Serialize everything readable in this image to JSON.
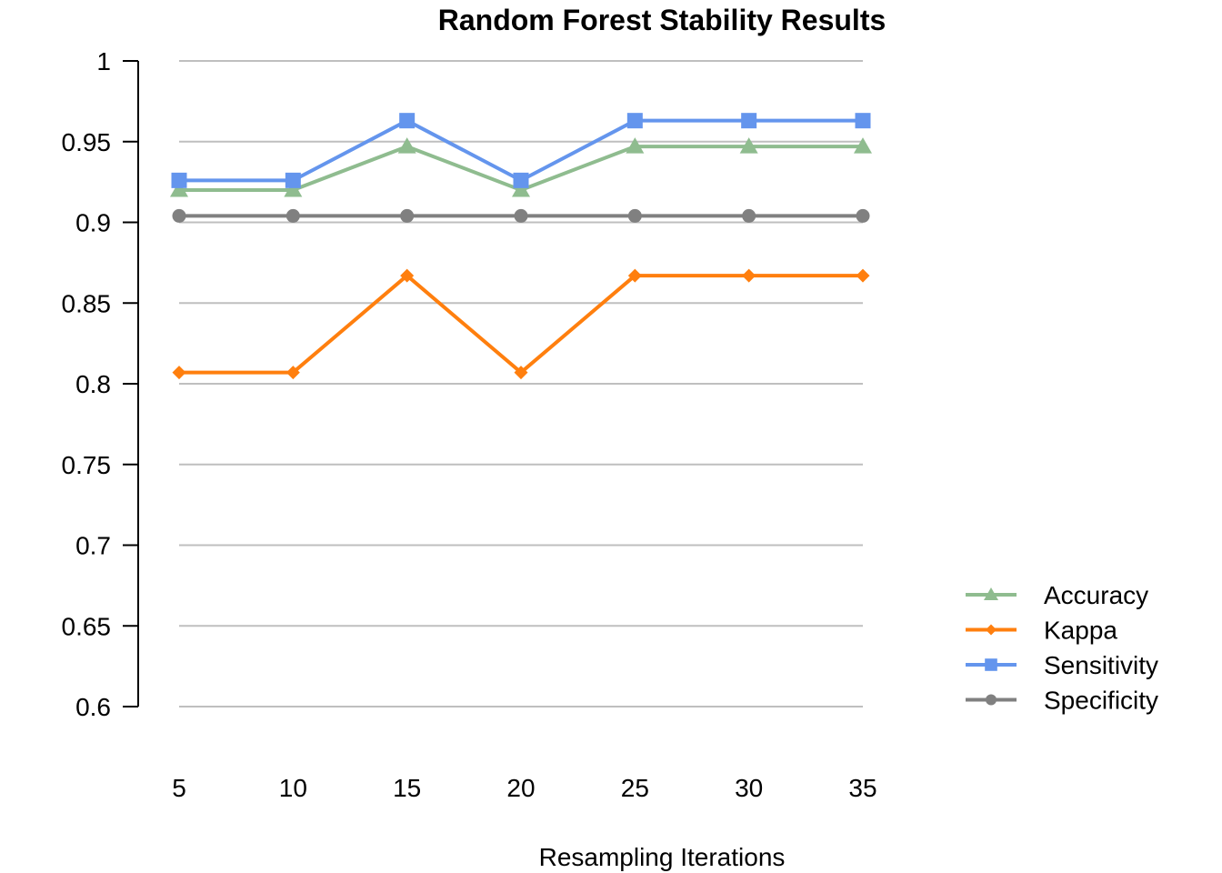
{
  "chart_data": {
    "type": "line",
    "title": "Random Forest Stability Results",
    "xlabel": "Resampling Iterations",
    "ylabel": "",
    "x": [
      5,
      10,
      15,
      20,
      25,
      30,
      35
    ],
    "x_tick_labels": [
      "5",
      "10",
      "15",
      "20",
      "25",
      "30",
      "35"
    ],
    "ylim": [
      0.6,
      1
    ],
    "y_ticks": [
      0.6,
      0.65,
      0.7,
      0.75,
      0.8,
      0.85,
      0.9,
      0.95,
      1
    ],
    "y_tick_labels": [
      "0.6",
      "0.65",
      "0.7",
      "0.75",
      "0.8",
      "0.85",
      "0.9",
      "0.95",
      "1"
    ],
    "grid": "horizontal",
    "legend_position": "right",
    "series": [
      {
        "name": "Accuracy",
        "color": "#8fbc8f",
        "marker": "triangle",
        "values": [
          0.92,
          0.92,
          0.947,
          0.92,
          0.947,
          0.947,
          0.947
        ]
      },
      {
        "name": "Kappa",
        "color": "#ff7f0e",
        "marker": "diamond",
        "values": [
          0.807,
          0.807,
          0.867,
          0.807,
          0.867,
          0.867,
          0.867
        ]
      },
      {
        "name": "Sensitivity",
        "color": "#6495ed",
        "marker": "square",
        "values": [
          0.926,
          0.926,
          0.963,
          0.926,
          0.963,
          0.963,
          0.963
        ]
      },
      {
        "name": "Specificity",
        "color": "#808080",
        "marker": "circle",
        "values": [
          0.904,
          0.904,
          0.904,
          0.904,
          0.904,
          0.904,
          0.904
        ]
      }
    ]
  }
}
